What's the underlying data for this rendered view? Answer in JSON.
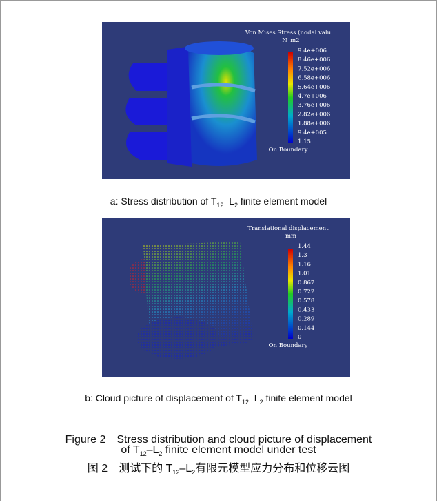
{
  "panels": [
    {
      "legend_title": "Von Mises Stress (nodal valu",
      "legend_unit": "N_m2",
      "legend_labels": [
        "9.4e+006",
        "8.46e+006",
        "7.52e+006",
        "6.58e+006",
        "5.64e+006",
        "4.7e+006",
        "3.76e+006",
        "2.82e+006",
        "1.88e+006",
        "9.4e+005",
        "1.15"
      ],
      "legend_note": "On Boundary",
      "caption": [
        "a: Stress distribution of T",
        "12",
        "–L",
        "2",
        " finite element model"
      ]
    },
    {
      "legend_title": "Translational displacement",
      "legend_unit": "mm",
      "legend_labels": [
        "1.44",
        "1.3",
        "1.16",
        "1.01",
        "0.867",
        "0.722",
        "0.578",
        "0.433",
        "0.289",
        "0.144",
        "0"
      ],
      "legend_note": "On Boundary",
      "caption": [
        "b: Cloud picture of displacement of T",
        "12",
        "–L",
        "2",
        " finite element model"
      ]
    }
  ],
  "figure": {
    "caption_en_line1": "Figure 2　Stress distribution and cloud picture of displacement",
    "caption_en_line2": [
      "of T",
      "12",
      "–L",
      "2",
      " finite element model under test"
    ],
    "caption_zh": [
      "图 2　测试下的 T",
      "12",
      "–L",
      "2",
      "有限元模型应力分布和位移云图"
    ]
  }
}
